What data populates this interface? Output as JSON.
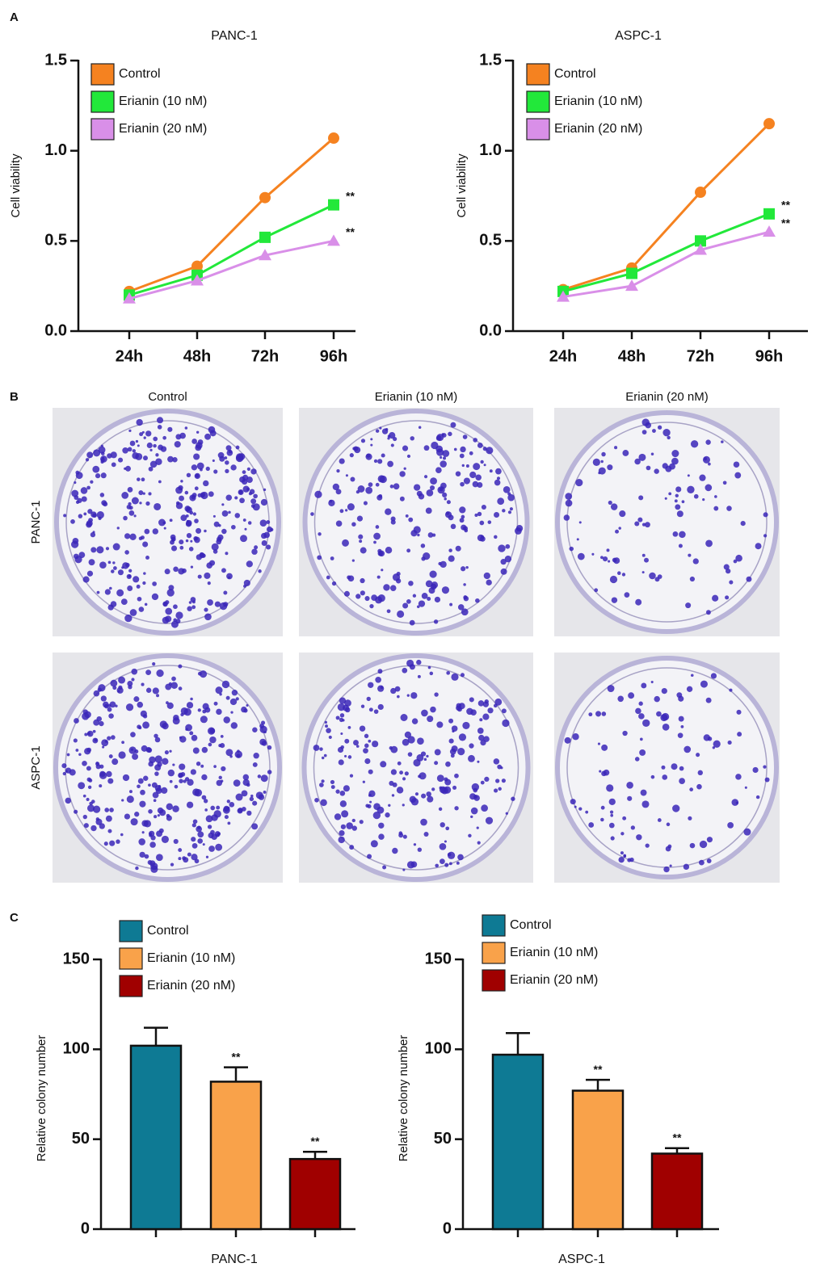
{
  "panels": [
    "A",
    "B",
    "C"
  ],
  "colonies": {
    "columns": [
      "Control",
      "Erianin (10 nM)",
      "Erianin (20 nM)"
    ],
    "rows": [
      "PANC-1",
      "ASPC-1"
    ]
  },
  "chart_data": [
    {
      "type": "line",
      "title": "PANC-1",
      "ylabel": "Cell viability",
      "legend": "upper left",
      "categories": [
        "24h",
        "48h",
        "72h",
        "96h"
      ],
      "series": [
        {
          "name": "Control",
          "color": "#f58220",
          "marker": "circle",
          "values": [
            0.22,
            0.36,
            0.74,
            1.07
          ]
        },
        {
          "name": "Erianin (10 nM)",
          "color": "#22e83a",
          "marker": "square",
          "values": [
            0.2,
            0.31,
            0.52,
            0.7
          ],
          "annotation": "**"
        },
        {
          "name": "Erianin (20 nM)",
          "color": "#d98fe8",
          "marker": "triangle",
          "values": [
            0.18,
            0.28,
            0.42,
            0.5
          ],
          "annotation": "**"
        }
      ],
      "ylim": [
        0,
        1.5
      ],
      "yticks": [
        {
          "value": 0,
          "label": "0.0"
        },
        0.5,
        {
          "value": 1,
          "label": "1.0"
        },
        1.5
      ]
    },
    {
      "type": "line",
      "title": "ASPC-1",
      "ylabel": "Cell viability",
      "legend": "upper left",
      "categories": [
        "24h",
        "48h",
        "72h",
        "96h"
      ],
      "series": [
        {
          "name": "Control",
          "color": "#f58220",
          "marker": "circle",
          "values": [
            0.23,
            0.35,
            0.77,
            1.15
          ]
        },
        {
          "name": "Erianin (10 nM)",
          "color": "#22e83a",
          "marker": "square",
          "values": [
            0.22,
            0.32,
            0.5,
            0.65
          ],
          "annotation": "**"
        },
        {
          "name": "Erianin (20 nM)",
          "color": "#d98fe8",
          "marker": "triangle",
          "values": [
            0.19,
            0.25,
            0.45,
            0.55
          ],
          "annotation": "**"
        }
      ],
      "ylim": [
        0,
        1.5
      ],
      "yticks": [
        {
          "value": 0,
          "label": "0.0"
        },
        0.5,
        {
          "value": 1,
          "label": "1.0"
        },
        1.5
      ]
    },
    {
      "type": "bar",
      "xlabel": "PANC-1",
      "ylabel": "Relative colony number",
      "legend": "upper left",
      "categories": [
        null
      ],
      "series": [
        {
          "name": "Control",
          "color": "#0e7a94",
          "values": [
            102
          ],
          "errors": [
            10
          ]
        },
        {
          "name": "Erianin (10 nM)",
          "color": "#f9a24a",
          "values": [
            82
          ],
          "errors": [
            8
          ],
          "annotation": "**"
        },
        {
          "name": "Erianin (20 nM)",
          "color": "#a00000",
          "values": [
            39
          ],
          "errors": [
            4
          ],
          "annotation": "**"
        }
      ],
      "ylim": [
        0,
        150
      ],
      "yticks": [
        0,
        50,
        100,
        150
      ]
    },
    {
      "type": "bar",
      "xlabel": "ASPC-1",
      "ylabel": "Relative colony number",
      "legend": "upper left",
      "categories": [
        null
      ],
      "series": [
        {
          "name": "Control",
          "color": "#0e7a94",
          "values": [
            97
          ],
          "errors": [
            12
          ]
        },
        {
          "name": "Erianin (10 nM)",
          "color": "#f9a24a",
          "values": [
            77
          ],
          "errors": [
            6
          ],
          "annotation": "**"
        },
        {
          "name": "Erianin (20 nM)",
          "color": "#a00000",
          "values": [
            42
          ],
          "errors": [
            3
          ],
          "annotation": "**"
        }
      ],
      "ylim": [
        0,
        150
      ],
      "yticks": [
        0,
        50,
        100,
        150
      ]
    }
  ]
}
